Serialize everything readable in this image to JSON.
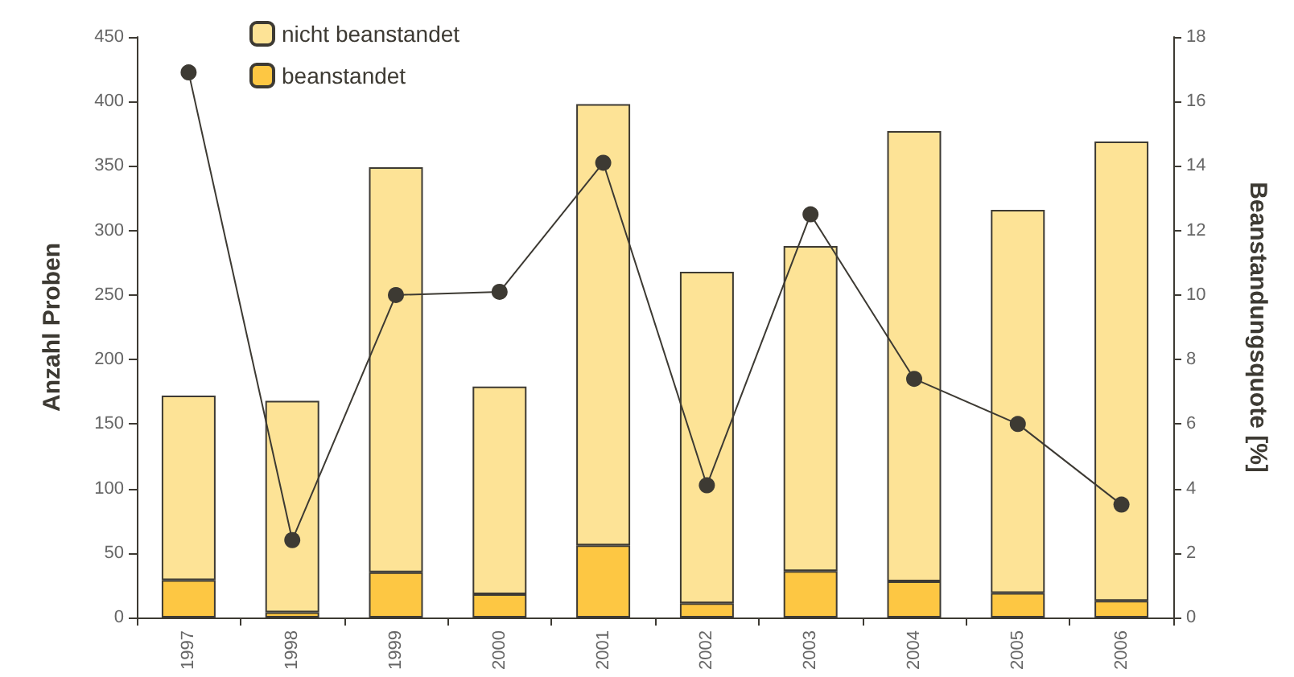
{
  "chart_data": {
    "type": "bar",
    "stacked": true,
    "categories": [
      "1997",
      "1998",
      "1999",
      "2000",
      "2001",
      "2002",
      "2003",
      "2004",
      "2005",
      "2006"
    ],
    "series": [
      {
        "name": "beanstandet",
        "color": "#fdc743",
        "values": [
          29,
          4,
          35,
          18,
          56,
          11,
          36,
          28,
          19,
          13
        ]
      },
      {
        "name": "nicht beanstandet",
        "color": "#fde396",
        "values": [
          143,
          164,
          314,
          161,
          342,
          257,
          252,
          349,
          297,
          356
        ]
      },
      {
        "type": "line",
        "axis": "y2",
        "color": "#3d3a33",
        "values": [
          16.9,
          2.4,
          10.0,
          10.1,
          14.1,
          4.1,
          12.5,
          7.4,
          6.0,
          3.5
        ]
      }
    ],
    "ylabel": "Anzahl Proben",
    "y2label": "Beanstandungsquote [%]",
    "ylim": [
      0,
      450
    ],
    "yticks": [
      0,
      50,
      100,
      150,
      200,
      250,
      300,
      350,
      400,
      450
    ],
    "y2lim": [
      0,
      18
    ],
    "y2ticks": [
      0,
      2,
      4,
      6,
      8,
      10,
      12,
      14,
      16,
      18
    ],
    "grid": false,
    "legend": "top left",
    "marker": "circle"
  }
}
